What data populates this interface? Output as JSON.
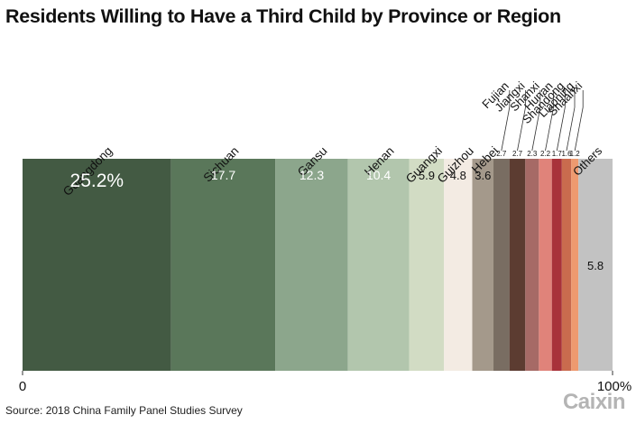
{
  "title": "Residents Willing to Have a Third Child by Province or Region",
  "source": "Source: 2018 China Family Panel Studies Survey",
  "logo": "Caixin",
  "chart_data": {
    "type": "bar",
    "orientation": "horizontal-stacked-100",
    "xlim": [
      0,
      100
    ],
    "axis_labels": [
      "0",
      "100%"
    ],
    "segments": [
      {
        "name": "Guangdong",
        "value": 25.2,
        "label": "25.2%",
        "color": "#435a43",
        "label_color": "#ffffff",
        "label_position": "inside-top"
      },
      {
        "name": "Sichuan",
        "value": 17.7,
        "label": "17.7",
        "color": "#5a775a",
        "label_color": "#ffffff",
        "label_position": "inside-top"
      },
      {
        "name": "Gansu",
        "value": 12.3,
        "label": "12.3",
        "color": "#8ca68c",
        "label_color": "#ffffff",
        "label_position": "inside-top"
      },
      {
        "name": "Henan",
        "value": 10.4,
        "label": "10.4",
        "color": "#b2c6ad",
        "label_color": "#ffffff",
        "label_position": "inside-top"
      },
      {
        "name": "Guangxi",
        "value": 5.9,
        "label": "5.9",
        "color": "#d2dcc4",
        "label_color": "#111111",
        "label_position": "inside-top"
      },
      {
        "name": "Guizhou",
        "value": 4.8,
        "label": "4.8",
        "color": "#f3ebe3",
        "label_color": "#111111",
        "label_position": "inside-top"
      },
      {
        "name": "Hebei",
        "value": 3.6,
        "label": "3.6",
        "color": "#a4998b",
        "label_color": "#111111",
        "label_position": "inside-top"
      },
      {
        "name": "Fujian",
        "value": 2.7,
        "label": "2.7",
        "color": "#796d62",
        "label_color": "#111111",
        "label_position": "above"
      },
      {
        "name": "Jiangxi",
        "value": 2.7,
        "label": "2.7",
        "color": "#5c3c31",
        "label_color": "#111111",
        "label_position": "above"
      },
      {
        "name": "Shanxi",
        "value": 2.3,
        "label": "2.3",
        "color": "#a66a66",
        "label_color": "#111111",
        "label_position": "above"
      },
      {
        "name": "Hunan",
        "value": 2.2,
        "label": "2.2",
        "color": "#e0837a",
        "label_color": "#111111",
        "label_position": "above"
      },
      {
        "name": "Shandong",
        "value": 1.7,
        "label": "1.7",
        "color": "#a8323a",
        "label_color": "#111111",
        "label_position": "above"
      },
      {
        "name": "Liaoning",
        "value": 1.6,
        "label": "1.6",
        "color": "#c96b4e",
        "label_color": "#111111",
        "label_position": "above"
      },
      {
        "name": "Shaanxi",
        "value": 1.2,
        "label": "1.2",
        "color": "#ee9a6f",
        "label_color": "#111111",
        "label_position": "above"
      },
      {
        "name": "Others",
        "value": 5.8,
        "label": "5.8",
        "color": "#c2c2c2",
        "label_color": "#111111",
        "label_position": "inside-middle"
      }
    ]
  }
}
